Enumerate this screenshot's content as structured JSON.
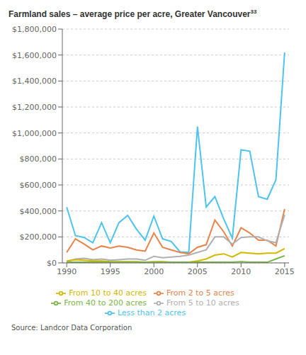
{
  "chart_data": {
    "type": "line",
    "title": "Farmland sales – average price per acre, Greater Vancouver",
    "annotations": [
      "33",
      "Source: Landcor Data Corporation"
    ],
    "x": [
      1990,
      1991,
      1992,
      1993,
      1994,
      1995,
      1996,
      1997,
      1998,
      1999,
      2000,
      2001,
      2002,
      2003,
      2004,
      2005,
      2006,
      2007,
      2008,
      2009,
      2010,
      2011,
      2012,
      2013,
      2014,
      2015
    ],
    "series": [
      {
        "name": "Less than 2 acres",
        "color": "#4dc3f0",
        "values": [
          430000,
          210000,
          195000,
          155000,
          310000,
          155000,
          310000,
          365000,
          260000,
          175000,
          360000,
          185000,
          165000,
          85000,
          80000,
          1050000,
          430000,
          510000,
          340000,
          190000,
          870000,
          860000,
          510000,
          490000,
          640000,
          1620000
        ]
      },
      {
        "name": "From 2 to 5 acres",
        "color": "#e8834a",
        "values": [
          80000,
          185000,
          145000,
          100000,
          130000,
          115000,
          130000,
          120000,
          100000,
          90000,
          230000,
          120000,
          100000,
          80000,
          70000,
          120000,
          140000,
          330000,
          240000,
          130000,
          270000,
          230000,
          175000,
          175000,
          130000,
          415000
        ]
      },
      {
        "name": "From 5 to 10 acres",
        "color": "#b0b0b0",
        "values": [
          10000,
          30000,
          35000,
          25000,
          30000,
          20000,
          25000,
          30000,
          30000,
          20000,
          50000,
          40000,
          45000,
          50000,
          60000,
          80000,
          100000,
          200000,
          200000,
          145000,
          195000,
          200000,
          200000,
          170000,
          155000,
          370000
        ]
      },
      {
        "name": "From 10 to 40 acres",
        "color": "#d4b800",
        "values": [
          15000,
          25000,
          20000,
          15000,
          15000,
          10000,
          10000,
          10000,
          10000,
          5000,
          10000,
          10000,
          5000,
          5000,
          5000,
          15000,
          30000,
          60000,
          70000,
          45000,
          80000,
          75000,
          70000,
          75000,
          75000,
          110000
        ]
      },
      {
        "name": "From 40 to 200 acres",
        "color": "#7ab648",
        "values": [
          5000,
          5000,
          5000,
          5000,
          5000,
          5000,
          5000,
          5000,
          5000,
          5000,
          5000,
          5000,
          5000,
          5000,
          5000,
          5000,
          5000,
          5000,
          5000,
          5000,
          10000,
          5000,
          5000,
          5000,
          30000,
          55000
        ]
      }
    ],
    "xlim": [
      1989.5,
      2015.5
    ],
    "xticks": [
      1990,
      1995,
      2000,
      2005,
      2010,
      2015
    ],
    "ylim": [
      0,
      1800000
    ],
    "yticks": [
      {
        "value": 0,
        "label": "$0"
      },
      {
        "value": 200000,
        "label": "$200,000"
      },
      {
        "value": 400000,
        "label": "$400,000"
      },
      {
        "value": 600000,
        "label": "$600,000"
      },
      {
        "value": 800000,
        "label": "$800,000"
      },
      {
        "value": 1000000,
        "label": "$1,000,000"
      },
      {
        "value": 1200000,
        "label": "$1,200,000"
      },
      {
        "value": 1400000,
        "label": "$1,400,000"
      },
      {
        "value": 1600000,
        "label": "$1,600,000"
      },
      {
        "value": 1800000,
        "label": "$1,800,000"
      }
    ],
    "grid": true
  }
}
